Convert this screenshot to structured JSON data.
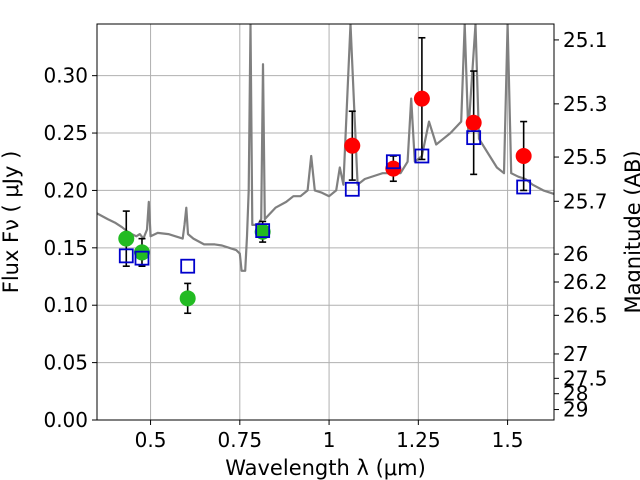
{
  "chart_data": {
    "type": "scatter",
    "title": "",
    "xlabel": "Wavelength  λ (μm)",
    "ylabel": "Flux  Fν  ( μJy )",
    "y2label": "Magnitude (AB)",
    "xlim": [
      0.35,
      1.63
    ],
    "ylim": [
      0.0,
      0.345
    ],
    "grid": true,
    "x_ticks": [
      {
        "value": 0.5,
        "label": "0.5"
      },
      {
        "value": 0.75,
        "label": "0.75"
      },
      {
        "value": 1.0,
        "label": "1"
      },
      {
        "value": 1.25,
        "label": "1.25"
      },
      {
        "value": 1.5,
        "label": "1.5"
      }
    ],
    "y_ticks": [
      {
        "value": 0.0,
        "label": "0.00"
      },
      {
        "value": 0.05,
        "label": "0.05"
      },
      {
        "value": 0.1,
        "label": "0.10"
      },
      {
        "value": 0.15,
        "label": "0.15"
      },
      {
        "value": 0.2,
        "label": "0.20"
      },
      {
        "value": 0.25,
        "label": "0.25"
      },
      {
        "value": 0.3,
        "label": "0.30"
      }
    ],
    "y2_ticks": [
      {
        "mag": 25.1,
        "label": "25.1"
      },
      {
        "mag": 25.3,
        "label": "25.3"
      },
      {
        "mag": 25.5,
        "label": "25.5"
      },
      {
        "mag": 25.7,
        "label": "25.7"
      },
      {
        "mag": 26.0,
        "label": "26"
      },
      {
        "mag": 26.2,
        "label": "26.2"
      },
      {
        "mag": 26.5,
        "label": "26.5"
      },
      {
        "mag": 27.0,
        "label": "27"
      },
      {
        "mag": 27.5,
        "label": "27.5"
      },
      {
        "mag": 28.0,
        "label": "28"
      },
      {
        "mag": 29.0,
        "label": "29"
      }
    ],
    "series": [
      {
        "kind": "line",
        "color": "#808080",
        "points": [
          [
            0.35,
            0.18
          ],
          [
            0.38,
            0.175
          ],
          [
            0.4,
            0.172
          ],
          [
            0.42,
            0.168
          ],
          [
            0.44,
            0.163
          ],
          [
            0.46,
            0.16
          ],
          [
            0.47,
            0.162
          ],
          [
            0.48,
            0.158
          ],
          [
            0.49,
            0.166
          ],
          [
            0.495,
            0.19
          ],
          [
            0.5,
            0.16
          ],
          [
            0.52,
            0.163
          ],
          [
            0.55,
            0.162
          ],
          [
            0.57,
            0.16
          ],
          [
            0.59,
            0.158
          ],
          [
            0.595,
            0.17
          ],
          [
            0.6,
            0.185
          ],
          [
            0.605,
            0.162
          ],
          [
            0.62,
            0.158
          ],
          [
            0.65,
            0.153
          ],
          [
            0.68,
            0.153
          ],
          [
            0.7,
            0.152
          ],
          [
            0.72,
            0.15
          ],
          [
            0.74,
            0.148
          ],
          [
            0.75,
            0.145
          ],
          [
            0.755,
            0.13
          ],
          [
            0.765,
            0.13
          ],
          [
            0.77,
            0.16
          ],
          [
            0.775,
            0.2
          ],
          [
            0.78,
            0.345
          ],
          [
            0.785,
            0.17
          ],
          [
            0.8,
            0.17
          ],
          [
            0.81,
            0.175
          ],
          [
            0.815,
            0.31
          ],
          [
            0.82,
            0.175
          ],
          [
            0.85,
            0.185
          ],
          [
            0.88,
            0.19
          ],
          [
            0.9,
            0.195
          ],
          [
            0.92,
            0.195
          ],
          [
            0.94,
            0.2
          ],
          [
            0.95,
            0.23
          ],
          [
            0.96,
            0.2
          ],
          [
            0.98,
            0.198
          ],
          [
            1.0,
            0.195
          ],
          [
            1.02,
            0.2
          ],
          [
            1.03,
            0.22
          ],
          [
            1.04,
            0.205
          ],
          [
            1.06,
            0.345
          ],
          [
            1.08,
            0.205
          ],
          [
            1.1,
            0.21
          ],
          [
            1.13,
            0.213
          ],
          [
            1.15,
            0.215
          ],
          [
            1.17,
            0.215
          ],
          [
            1.2,
            0.215
          ],
          [
            1.22,
            0.225
          ],
          [
            1.23,
            0.28
          ],
          [
            1.24,
            0.225
          ],
          [
            1.26,
            0.23
          ],
          [
            1.28,
            0.26
          ],
          [
            1.3,
            0.24
          ],
          [
            1.32,
            0.245
          ],
          [
            1.34,
            0.25
          ],
          [
            1.37,
            0.26
          ],
          [
            1.38,
            0.345
          ],
          [
            1.39,
            0.25
          ],
          [
            1.41,
            0.345
          ],
          [
            1.42,
            0.245
          ],
          [
            1.45,
            0.23
          ],
          [
            1.47,
            0.22
          ],
          [
            1.49,
            0.215
          ],
          [
            1.5,
            0.345
          ],
          [
            1.51,
            0.215
          ],
          [
            1.53,
            0.212
          ],
          [
            1.55,
            0.21
          ],
          [
            1.57,
            0.205
          ],
          [
            1.6,
            0.2
          ],
          [
            1.63,
            0.197
          ]
        ]
      },
      {
        "kind": "errorbar",
        "marker": "circle",
        "color": "#22bb22",
        "points": [
          {
            "x": 0.432,
            "y": 0.158,
            "err_low": 0.024,
            "err_high": 0.024
          },
          {
            "x": 0.476,
            "y": 0.146,
            "err_low": 0.012,
            "err_high": 0.012
          },
          {
            "x": 0.604,
            "y": 0.106,
            "err_low": 0.013,
            "err_high": 0.013
          },
          {
            "x": 0.814,
            "y": 0.164,
            "err_low": 0.009,
            "err_high": 0.009
          }
        ]
      },
      {
        "kind": "errorbar",
        "marker": "circle",
        "color": "#ff0000",
        "points": [
          {
            "x": 1.065,
            "y": 0.239,
            "err_low": 0.03,
            "err_high": 0.03
          },
          {
            "x": 1.18,
            "y": 0.219,
            "err_low": 0.011,
            "err_high": 0.011
          },
          {
            "x": 1.26,
            "y": 0.28,
            "err_low": 0.053,
            "err_high": 0.053
          },
          {
            "x": 1.405,
            "y": 0.259,
            "err_low": 0.045,
            "err_high": 0.045
          },
          {
            "x": 1.545,
            "y": 0.23,
            "err_low": 0.03,
            "err_high": 0.03
          }
        ]
      },
      {
        "kind": "scatter",
        "marker": "open-square",
        "color": "#0000cc",
        "points": [
          {
            "x": 0.432,
            "y": 0.143
          },
          {
            "x": 0.476,
            "y": 0.141
          },
          {
            "x": 0.604,
            "y": 0.134
          },
          {
            "x": 0.814,
            "y": 0.165
          },
          {
            "x": 1.065,
            "y": 0.201
          },
          {
            "x": 1.18,
            "y": 0.225
          },
          {
            "x": 1.26,
            "y": 0.23
          },
          {
            "x": 1.405,
            "y": 0.246
          },
          {
            "x": 1.545,
            "y": 0.203
          }
        ]
      }
    ]
  }
}
